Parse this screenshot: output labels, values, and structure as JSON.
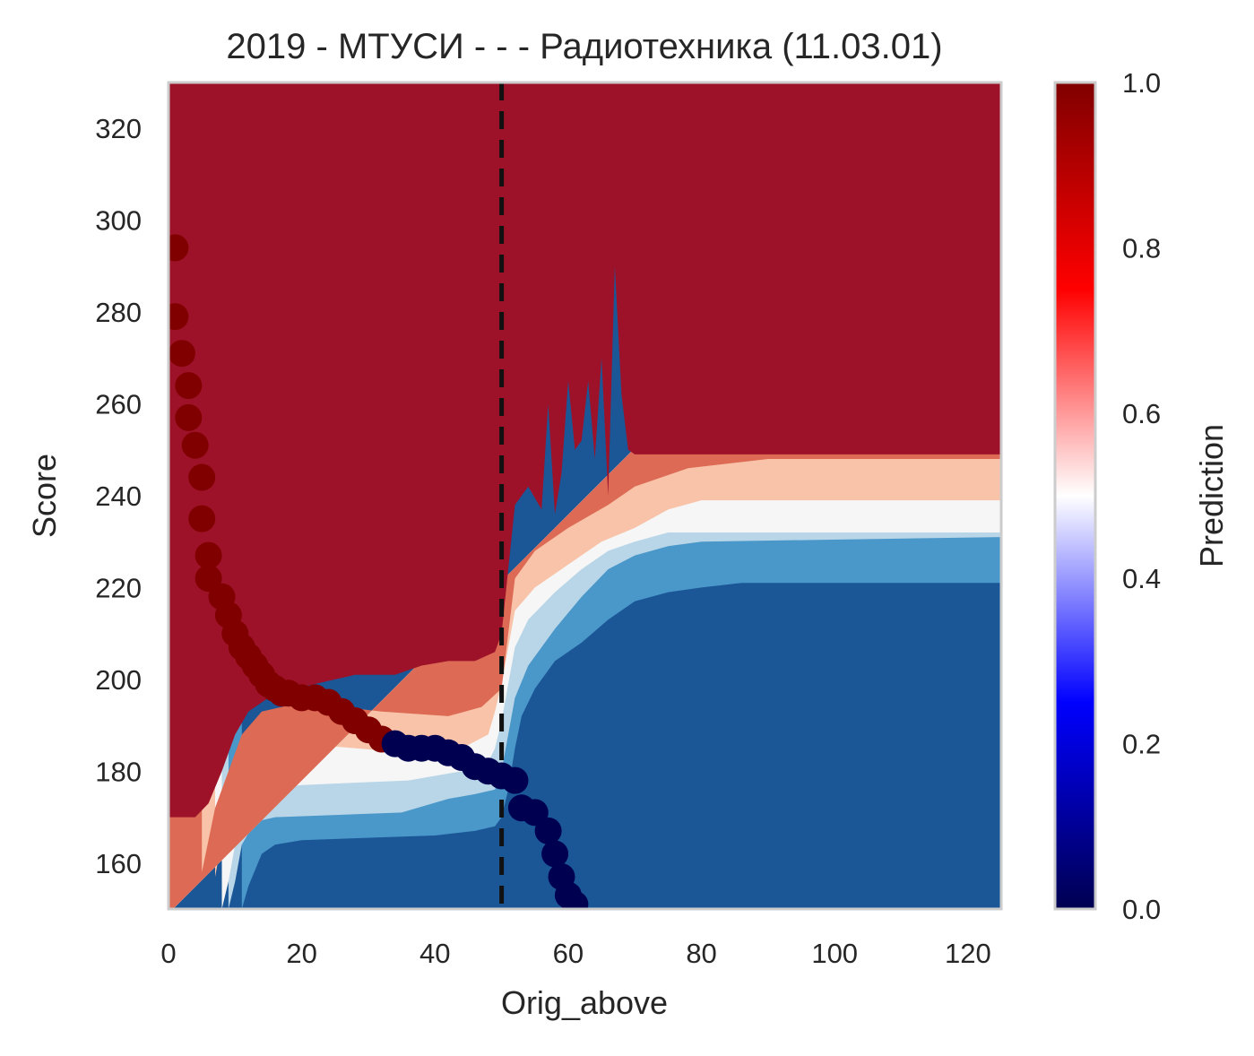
{
  "chart_data": {
    "type": "contour",
    "title": "2019 - МТУСИ - - - Радиотехника (11.03.01)",
    "xlabel": "Orig_above",
    "ylabel": "Score",
    "xlim": [
      0,
      125
    ],
    "ylim": [
      150,
      330
    ],
    "xticks": [
      "0",
      "20",
      "40",
      "60",
      "80",
      "100",
      "120"
    ],
    "yticks": [
      "160",
      "180",
      "200",
      "220",
      "240",
      "260",
      "280",
      "300",
      "320"
    ],
    "threshold_line": {
      "x": 50,
      "style": "dashed",
      "color": "#111111"
    },
    "contour_levels": [
      {
        "range": [
          0.0,
          0.17
        ],
        "color": "#1b5797"
      },
      {
        "range": [
          0.17,
          0.33
        ],
        "color": "#4a97c9"
      },
      {
        "range": [
          0.33,
          0.5
        ],
        "color": "#b8d6e8"
      },
      {
        "range": [
          0.5,
          0.67
        ],
        "color": "#f6f6f6"
      },
      {
        "range": [
          0.67,
          0.83
        ],
        "color": "#f8c3a8"
      },
      {
        "range": [
          0.83,
          0.9
        ],
        "color": "#dc6a54"
      },
      {
        "range": [
          0.9,
          1.0
        ],
        "color": "#9d1229"
      }
    ],
    "contour_boundaries": [
      {
        "level": 0.17,
        "points": [
          [
            11,
            150
          ],
          [
            12,
            155
          ],
          [
            14,
            162
          ],
          [
            16,
            164
          ],
          [
            20,
            165
          ],
          [
            40,
            166
          ],
          [
            46,
            167
          ],
          [
            49,
            168
          ],
          [
            50,
            170
          ],
          [
            51,
            176
          ],
          [
            52,
            185
          ],
          [
            53,
            192
          ],
          [
            55,
            198
          ],
          [
            58,
            204
          ],
          [
            62,
            208
          ],
          [
            66,
            213
          ],
          [
            70,
            217
          ],
          [
            75,
            219
          ],
          [
            80,
            220
          ],
          [
            86,
            221
          ],
          [
            125,
            221
          ]
        ]
      },
      {
        "level": 0.33,
        "points": [
          [
            9,
            150
          ],
          [
            10,
            156
          ],
          [
            11,
            164
          ],
          [
            13,
            169
          ],
          [
            16,
            170
          ],
          [
            35,
            171
          ],
          [
            42,
            174
          ],
          [
            46,
            175
          ],
          [
            49,
            176
          ],
          [
            50,
            180
          ],
          [
            51,
            188
          ],
          [
            52,
            196
          ],
          [
            54,
            203
          ],
          [
            58,
            211
          ],
          [
            62,
            218
          ],
          [
            66,
            224
          ],
          [
            70,
            227
          ],
          [
            75,
            229
          ],
          [
            80,
            230
          ],
          [
            125,
            231
          ]
        ]
      },
      {
        "level": 0.5,
        "points": [
          [
            8,
            150
          ],
          [
            9,
            156
          ],
          [
            10,
            164
          ],
          [
            11,
            172
          ],
          [
            14,
            176
          ],
          [
            20,
            177
          ],
          [
            36,
            178
          ],
          [
            44,
            180
          ],
          [
            48,
            182
          ],
          [
            49,
            185
          ],
          [
            50,
            191
          ],
          [
            51,
            199
          ],
          [
            52,
            207
          ],
          [
            54,
            213
          ],
          [
            58,
            219
          ],
          [
            62,
            224
          ],
          [
            66,
            228
          ],
          [
            70,
            230
          ],
          [
            75,
            232
          ],
          [
            125,
            232
          ]
        ]
      },
      {
        "level": 0.67,
        "points": [
          [
            7,
            150
          ],
          [
            7,
            157
          ],
          [
            8,
            165
          ],
          [
            9,
            173
          ],
          [
            11,
            180
          ],
          [
            14,
            185
          ],
          [
            20,
            186
          ],
          [
            36,
            184
          ],
          [
            44,
            185
          ],
          [
            48,
            188
          ],
          [
            49,
            193
          ],
          [
            50,
            199
          ],
          [
            51,
            207
          ],
          [
            52,
            215
          ],
          [
            55,
            220
          ],
          [
            60,
            225
          ],
          [
            65,
            230
          ],
          [
            70,
            233
          ],
          [
            75,
            237
          ],
          [
            80,
            239
          ],
          [
            125,
            239
          ]
        ]
      },
      {
        "level": 0.83,
        "points": [
          [
            5,
            150
          ],
          [
            5,
            158
          ],
          [
            6,
            165
          ],
          [
            7,
            172
          ],
          [
            9,
            180
          ],
          [
            11,
            188
          ],
          [
            14,
            193
          ],
          [
            20,
            195
          ],
          [
            32,
            193
          ],
          [
            42,
            192
          ],
          [
            47,
            194
          ],
          [
            50,
            198
          ],
          [
            51,
            210
          ],
          [
            52,
            222
          ],
          [
            55,
            228
          ],
          [
            60,
            233
          ],
          [
            66,
            238
          ],
          [
            70,
            242
          ],
          [
            78,
            246
          ],
          [
            90,
            248
          ],
          [
            125,
            248
          ]
        ]
      },
      {
        "level": 0.9,
        "points": [
          [
            0,
            170
          ],
          [
            4,
            170
          ],
          [
            6,
            173
          ],
          [
            8,
            180
          ],
          [
            10,
            188
          ],
          [
            12,
            193
          ],
          [
            16,
            197
          ],
          [
            22,
            199
          ],
          [
            28,
            201
          ],
          [
            34,
            201
          ],
          [
            38,
            203
          ],
          [
            42,
            204
          ],
          [
            46,
            204
          ],
          [
            49,
            206
          ],
          [
            50,
            210
          ],
          [
            51,
            224
          ],
          [
            52,
            238
          ],
          [
            54,
            242
          ],
          [
            56,
            237
          ],
          [
            57,
            260
          ],
          [
            58,
            236
          ],
          [
            59,
            245
          ],
          [
            60,
            265
          ],
          [
            61,
            250
          ],
          [
            62,
            252
          ],
          [
            63,
            265
          ],
          [
            64,
            248
          ],
          [
            65,
            270
          ],
          [
            66,
            240
          ],
          [
            67,
            290
          ],
          [
            68,
            262
          ],
          [
            69,
            250
          ],
          [
            70,
            249
          ],
          [
            80,
            249
          ],
          [
            125,
            249
          ]
        ]
      }
    ],
    "series": [
      {
        "type": "scatter",
        "points": [
          [
            1,
            294
          ],
          [
            1,
            279
          ],
          [
            2,
            271
          ],
          [
            3,
            264
          ],
          [
            3,
            257
          ],
          [
            4,
            251
          ],
          [
            5,
            244
          ],
          [
            5,
            235
          ],
          [
            6,
            227
          ],
          [
            6,
            222
          ],
          [
            8,
            218
          ],
          [
            9,
            214
          ],
          [
            10,
            210
          ],
          [
            11,
            207
          ],
          [
            12,
            205
          ],
          [
            13,
            203
          ],
          [
            14,
            201
          ],
          [
            15,
            199
          ],
          [
            16,
            198
          ],
          [
            17,
            197
          ],
          [
            18,
            197
          ],
          [
            20,
            196
          ],
          [
            22,
            196
          ],
          [
            24,
            195
          ],
          [
            26,
            193
          ],
          [
            28,
            191
          ],
          [
            30,
            189
          ],
          [
            32,
            187
          ],
          [
            34,
            186
          ],
          [
            36,
            185
          ],
          [
            38,
            185
          ],
          [
            40,
            185
          ],
          [
            42,
            184
          ],
          [
            44,
            183
          ],
          [
            46,
            181
          ],
          [
            48,
            180
          ],
          [
            50,
            179
          ],
          [
            52,
            178
          ],
          [
            53,
            172
          ],
          [
            55,
            171
          ],
          [
            57,
            167
          ],
          [
            58,
            162
          ],
          [
            59,
            157
          ],
          [
            60,
            153
          ],
          [
            61,
            151
          ]
        ],
        "color_rule": "red above the 0.5 boundary, navy below",
        "colors": [
          "#800000",
          "#000050"
        ]
      }
    ],
    "colorbar": {
      "label": "Prediction",
      "ticks": [
        "0.0",
        "0.2",
        "0.4",
        "0.6",
        "0.8",
        "1.0"
      ],
      "colormap": "seismic"
    }
  }
}
